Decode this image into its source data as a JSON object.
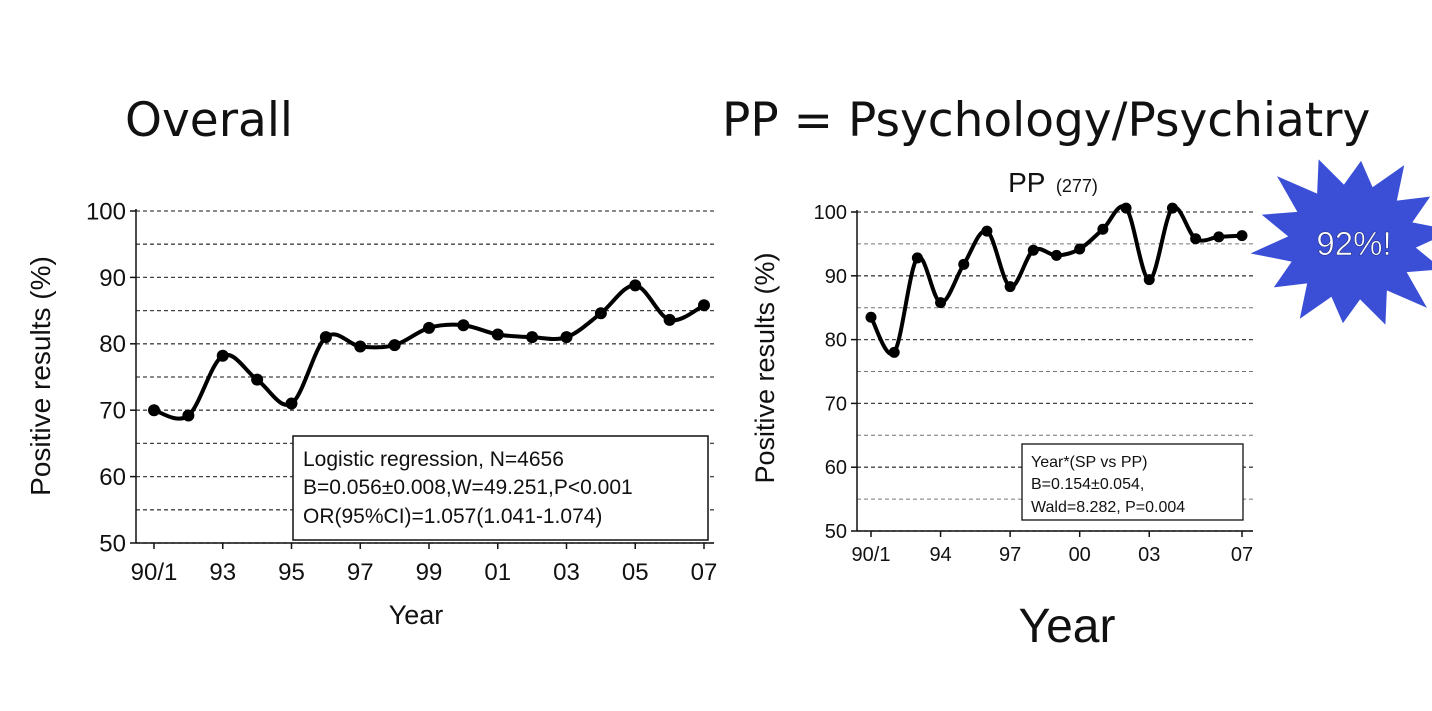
{
  "slide": {
    "left_heading": "Overall",
    "right_heading": "PP = Psychology/Psychiatry",
    "callout": "92%!",
    "callout_color": "#3a4fd6"
  },
  "chart_data": [
    {
      "type": "line",
      "title": "",
      "xlabel": "Year",
      "ylabel": "Positive results (%)",
      "ylim": [
        50,
        100
      ],
      "yticks": [
        "100",
        "90",
        "80",
        "70",
        "60",
        "50"
      ],
      "xtick_labels": [
        "90/1",
        "93",
        "95",
        "97",
        "99",
        "01",
        "03",
        "05",
        "07"
      ],
      "x": [
        "90/1",
        "92",
        "93",
        "94",
        "95",
        "96",
        "97",
        "98",
        "99",
        "00",
        "01",
        "02",
        "03",
        "04",
        "05",
        "06",
        "07"
      ],
      "values": [
        70.0,
        69.2,
        78.2,
        74.6,
        71.0,
        81.0,
        79.6,
        79.8,
        82.4,
        82.8,
        81.4,
        81.0,
        81.0,
        84.6,
        88.8,
        83.6,
        85.8
      ],
      "grid": true,
      "annotation": [
        "Logistic regression, N=4656",
        "B=0.056±0.008,W=49.251,P<0.001",
        "OR(95%CI)=1.057(1.041-1.074)"
      ]
    },
    {
      "type": "line",
      "title": "PP",
      "title_note": "(277)",
      "xlabel": "Year",
      "ylabel": "Positive results (%)",
      "ylim": [
        50,
        100
      ],
      "yticks": [
        "100",
        "90",
        "80",
        "70",
        "60",
        "50"
      ],
      "xtick_labels": [
        "90/1",
        "94",
        "97",
        "00",
        "03",
        "07"
      ],
      "x": [
        "90/1",
        "92",
        "93",
        "94",
        "95",
        "96",
        "97",
        "98",
        "99",
        "00",
        "01",
        "02",
        "03",
        "04",
        "05",
        "06",
        "07"
      ],
      "values": [
        83.5,
        78.0,
        92.8,
        85.8,
        91.8,
        97.0,
        88.3,
        94.0,
        93.2,
        94.2,
        97.3,
        100.6,
        89.4,
        100.6,
        95.8,
        96.1,
        96.3
      ],
      "grid": true,
      "annotation": [
        "Year*(SP vs PP)",
        "B=0.154±0.054,",
        "Wald=8.282, P=0.004"
      ]
    }
  ]
}
